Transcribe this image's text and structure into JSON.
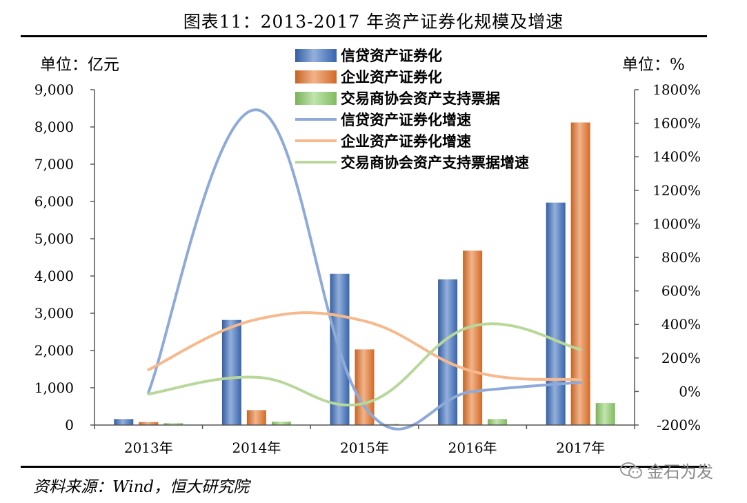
{
  "title": "图表11：2013-2017 年资产证券化规模及增速",
  "left_unit": "单位：亿元",
  "right_unit": "单位：%",
  "source": "资料来源：Wind，恒大研究院",
  "watermark": "金石为发",
  "chart_data": {
    "type": "bar",
    "categories": [
      "2013年",
      "2014年",
      "2015年",
      "2016年",
      "2017年"
    ],
    "series": [
      {
        "name": "信贷资产证券化",
        "type": "bar",
        "axis": "left",
        "color": "#3d6fbf",
        "values": [
          160,
          2820,
          4060,
          3910,
          5970
        ]
      },
      {
        "name": "企业资产证券化",
        "type": "bar",
        "axis": "left",
        "color": "#e8762b",
        "values": [
          80,
          400,
          2030,
          4680,
          8120
        ]
      },
      {
        "name": "交易商协会资产支持票据",
        "type": "bar",
        "axis": "left",
        "color": "#8fd06a",
        "values": [
          50,
          90,
          30,
          160,
          590
        ]
      },
      {
        "name": "信贷资产证券化增速",
        "type": "line",
        "axis": "right",
        "color": "#8eaad8",
        "values": [
          -5,
          1680,
          -90,
          0,
          55
        ]
      },
      {
        "name": "企业资产证券化增速",
        "type": "line",
        "axis": "right",
        "color": "#f7b98c",
        "values": [
          130,
          430,
          420,
          120,
          70
        ]
      },
      {
        "name": "交易商协会资产支持票据增速",
        "type": "line",
        "axis": "right",
        "color": "#b8d89a",
        "values": [
          -15,
          85,
          -70,
          390,
          250
        ]
      }
    ],
    "y_left": {
      "min": 0,
      "max": 9000,
      "ticks": [
        "0",
        "1,000",
        "2,000",
        "3,000",
        "4,000",
        "5,000",
        "6,000",
        "7,000",
        "8,000",
        "9,000"
      ]
    },
    "y_right": {
      "min": -200,
      "max": 1800,
      "ticks": [
        "-200%",
        "0%",
        "200%",
        "400%",
        "600%",
        "800%",
        "1000%",
        "1200%",
        "1400%",
        "1600%",
        "1800%"
      ]
    },
    "legend": "top-center",
    "grid": false
  }
}
